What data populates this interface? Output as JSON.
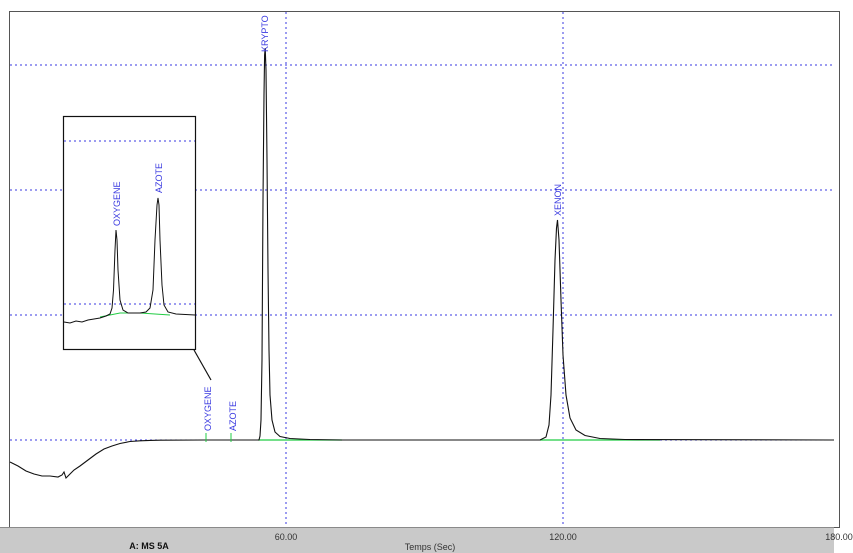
{
  "chart_data": {
    "type": "line",
    "xlabel": "Temps (Sec)",
    "channel_label": "A: MS 5A",
    "x_ticks": [
      {
        "value": 60,
        "label": "60.00"
      },
      {
        "value": 120,
        "label": "120.00"
      },
      {
        "value": 180,
        "label": "180.00"
      }
    ],
    "xlim": [
      -2,
      180
    ],
    "gridlines": "dotted",
    "colors": {
      "trace": "#111111",
      "baseline": "#22cc44",
      "grid": "#3a3ae0",
      "peak_label": "#3a3ae0"
    },
    "peaks": [
      {
        "label": "OXYGENE",
        "x": 42.0
      },
      {
        "label": "AZOTE",
        "x": 48.0
      },
      {
        "label": "KRYPTO",
        "x": 55.0
      },
      {
        "label": "XENON",
        "x": 118.5
      }
    ],
    "inset": {
      "peaks": [
        {
          "label": "OXYGENE"
        },
        {
          "label": "AZOTE"
        }
      ]
    }
  }
}
